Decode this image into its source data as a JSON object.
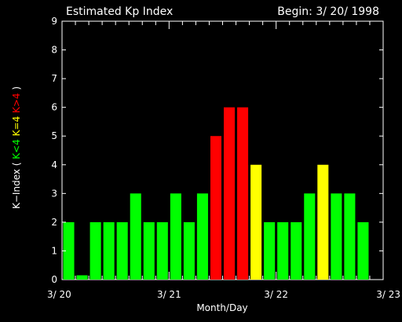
{
  "chart_data": {
    "type": "bar",
    "title_left": "Estimated Kp Index",
    "title_right": "Begin: 3/ 20/ 1998",
    "xlabel": "Month/Day",
    "ylabel_parts": [
      {
        "text": "K−Index ( ",
        "color": "#ffffff"
      },
      {
        "text": "K<4",
        "color": "#00ff00"
      },
      {
        "text": " K=4 ",
        "color": "#ffff00"
      },
      {
        "text": "K>4",
        "color": "#ff0000"
      },
      {
        "text": " )",
        "color": "#ffffff"
      }
    ],
    "ylim": [
      0,
      9
    ],
    "yticks": [
      "0",
      "1",
      "2",
      "3",
      "4",
      "5",
      "6",
      "7",
      "8",
      "9"
    ],
    "xlim": [
      0,
      3
    ],
    "xticks": [
      {
        "value": 0,
        "label": "3/ 20"
      },
      {
        "value": 1,
        "label": "3/ 21"
      },
      {
        "value": 2,
        "label": "3/ 22"
      },
      {
        "value": 3,
        "label": "3/ 23"
      }
    ],
    "interval_days": 0.125,
    "values": [
      2,
      0.15,
      2,
      2,
      2,
      3,
      2,
      2,
      3,
      2,
      3,
      5,
      6,
      6,
      4,
      2,
      2,
      2,
      3,
      4,
      3,
      3,
      2
    ],
    "colors": {
      "low": "#00ff00",
      "mid": "#ffff00",
      "high": "#ff0000",
      "axes": "#ffffff",
      "background": "#000000"
    }
  }
}
